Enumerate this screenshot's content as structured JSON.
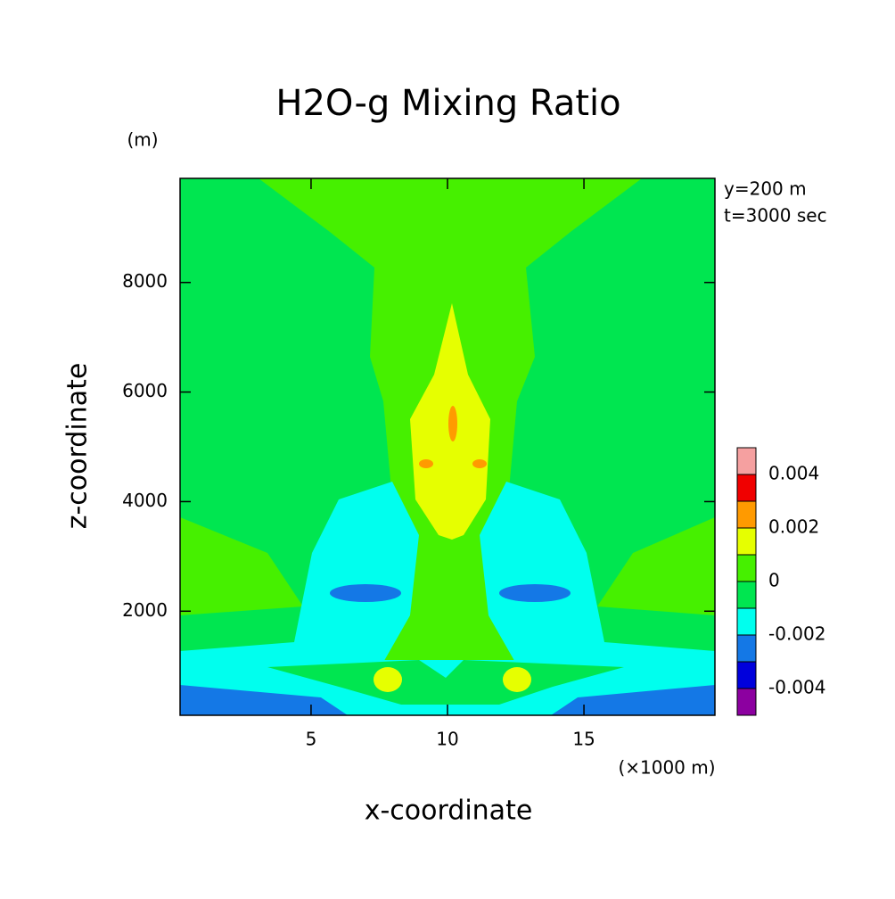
{
  "chart_data": {
    "type": "contour",
    "title": "H2O-g Mixing Ratio",
    "xlabel": "x-coordinate",
    "ylabel": "z-coordinate",
    "xunit": "(×1000 m)",
    "yunit": "(m)",
    "annotations": [
      "y=200 m",
      "t=3000 sec"
    ],
    "xlim": [
      0.2,
      19.8
    ],
    "xticks": [
      5,
      10,
      15
    ],
    "ylim": [
      100,
      9900
    ],
    "yticks": [
      2000,
      4000,
      6000,
      8000
    ],
    "levels": [
      -0.005,
      -0.004,
      -0.003,
      -0.002,
      -0.001,
      0,
      0.001,
      0.002,
      0.003,
      0.004,
      0.005
    ],
    "colors": [
      "#8c00a0",
      "#0000dc",
      "#1478e6",
      "#00ffee",
      "#00e650",
      "#46f000",
      "#e6ff00",
      "#ff9a00",
      "#f00000",
      "#f5a0a0"
    ],
    "colorbar_ticks": [
      -0.004,
      -0.002,
      0,
      0.002,
      0.004
    ]
  }
}
